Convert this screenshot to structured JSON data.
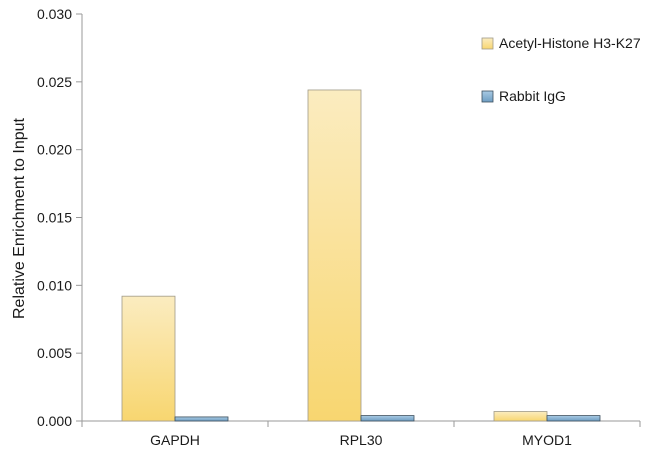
{
  "chart_data": {
    "type": "bar",
    "categories": [
      "GAPDH",
      "RPL30",
      "MYOD1"
    ],
    "series": [
      {
        "name": "Acetyl-Histone H3-K27",
        "values": [
          0.0092,
          0.0244,
          0.0007
        ],
        "color_top": "#fbecc0",
        "color_bottom": "#f8d670",
        "stroke": "#a09a88"
      },
      {
        "name": "Rabbit IgG",
        "values": [
          0.0003,
          0.0004,
          0.0004
        ],
        "color_top": "#a9cbe4",
        "color_bottom": "#6e9dc2",
        "stroke": "#3d4f5e"
      }
    ],
    "title": "",
    "xlabel": "",
    "ylabel": "Relative Enrichment to Input",
    "ylim": [
      0,
      0.03
    ],
    "yticks": [
      "0.000",
      "0.005",
      "0.010",
      "0.015",
      "0.020",
      "0.025",
      "0.030"
    ],
    "grid": false,
    "legend_position": "top-right"
  }
}
